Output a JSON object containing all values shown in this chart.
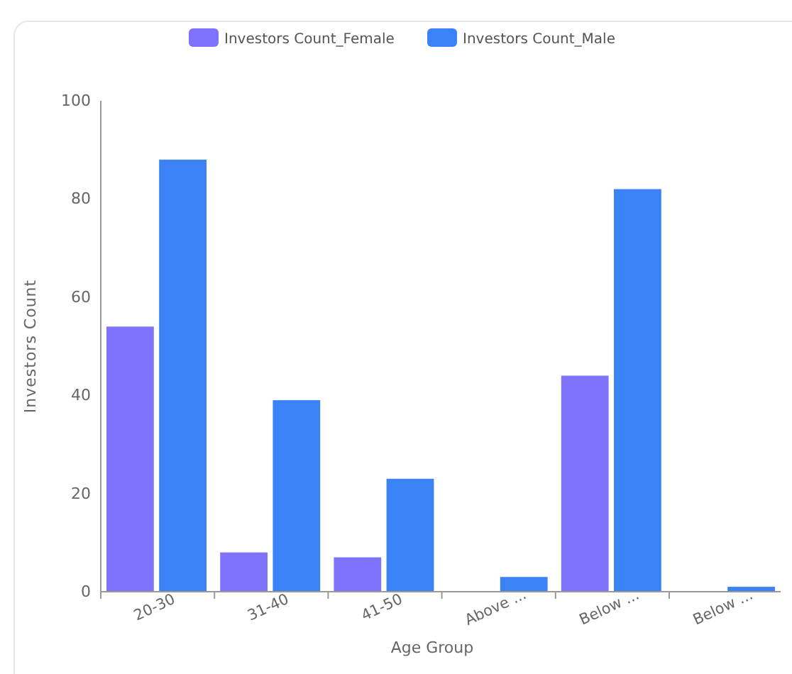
{
  "chart_data": {
    "type": "bar",
    "xlabel": "Age Group",
    "ylabel": "Investors Count",
    "categories": [
      "20-30",
      "31-40",
      "41-50",
      "Above ...",
      "Below ...",
      "Below ..."
    ],
    "series": [
      {
        "name": "Investors Count_Female",
        "color": "#7f73fd",
        "values": [
          54,
          8,
          7,
          0,
          44,
          0
        ]
      },
      {
        "name": "Investors Count_Male",
        "color": "#3b82f6",
        "values": [
          88,
          39,
          23,
          3,
          82,
          1
        ]
      }
    ],
    "ylim": [
      0,
      100
    ],
    "yticks": [
      0,
      20,
      40,
      60,
      80,
      100
    ],
    "legend": "top",
    "grid": false
  }
}
